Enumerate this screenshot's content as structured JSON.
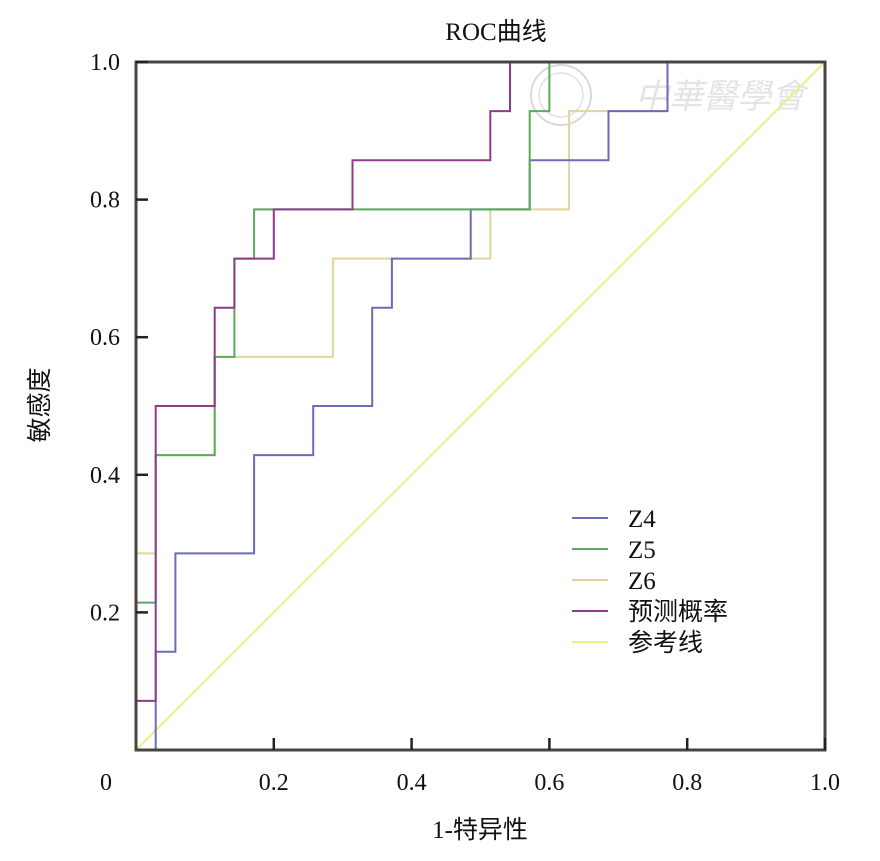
{
  "chart_data": {
    "type": "line",
    "subtype": "roc-step",
    "title": "ROC曲线",
    "xlabel": "1-特异性",
    "ylabel": "敏感度",
    "xlim": [
      0,
      1
    ],
    "ylim": [
      0,
      1
    ],
    "x_ticks": [
      "0.2",
      "0.4",
      "0.6",
      "0.8",
      "1.0"
    ],
    "y_ticks": [
      "0.2",
      "0.4",
      "0.6",
      "0.8",
      "1.0"
    ],
    "origin_label": "0",
    "grid": false,
    "legend_position": "bottom-right",
    "series": [
      {
        "name": "Z4",
        "color": "#6a6cb8",
        "fpr_35ths": [
          0,
          1,
          1,
          2,
          2,
          6,
          6,
          9,
          9,
          12,
          12,
          13,
          13,
          17,
          17,
          20,
          20,
          24,
          24,
          27,
          27,
          35
        ],
        "tpr_14ths": [
          0,
          0,
          2,
          2,
          4,
          4,
          6,
          6,
          7,
          7,
          9,
          9,
          10,
          10,
          11,
          11,
          12,
          12,
          13,
          13,
          14,
          14
        ]
      },
      {
        "name": "Z5",
        "color": "#5aab5e",
        "fpr_35ths": [
          0,
          0,
          1,
          1,
          4,
          4,
          5,
          5,
          6,
          6,
          20,
          20,
          21,
          21,
          35
        ],
        "tpr_14ths": [
          0,
          3,
          3,
          6,
          6,
          8,
          8,
          10,
          10,
          11,
          11,
          13,
          13,
          14,
          14
        ]
      },
      {
        "name": "Z6",
        "color": "#e2d49c",
        "fpr_35ths": [
          0,
          0,
          1,
          1,
          4,
          4,
          10,
          10,
          18,
          18,
          22,
          22,
          27,
          27,
          35
        ],
        "tpr_14ths": [
          0,
          4,
          4,
          6,
          6,
          8,
          8,
          10,
          10,
          11,
          11,
          13,
          13,
          14,
          14
        ]
      },
      {
        "name": "预测概率",
        "color": "#8e3b8c",
        "fpr_35ths": [
          0,
          0,
          1,
          1,
          4,
          4,
          5,
          5,
          7,
          7,
          11,
          11,
          18,
          18,
          19,
          19,
          35
        ],
        "tpr_14ths": [
          0,
          1,
          1,
          7,
          7,
          9,
          9,
          10,
          10,
          11,
          11,
          12,
          12,
          13,
          13,
          14,
          14
        ]
      },
      {
        "name": "参考线",
        "color": "#f0ec8c",
        "fpr_35ths": [
          0,
          35
        ],
        "tpr_14ths": [
          0,
          14
        ]
      }
    ]
  },
  "watermark": {
    "text": "中华医学会"
  }
}
